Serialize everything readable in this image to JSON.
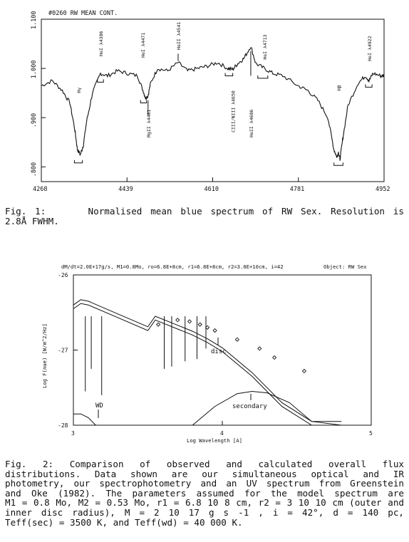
{
  "figure1": {
    "header": "#0260  RW MEAN CONT.",
    "y_tick_labels": [
      "1.100",
      "1.000",
      ".900",
      ".800"
    ],
    "x_tick_labels": [
      "4268",
      "4439",
      "4610",
      "4781",
      "4952"
    ],
    "line_labels": [
      {
        "text": "Hγ"
      },
      {
        "text": "HeI λ4386"
      },
      {
        "text": "HeI λ4471"
      },
      {
        "text": "MgII λ4481"
      },
      {
        "text": "HeII λ4541"
      },
      {
        "text": "CIII/NIII λ4650"
      },
      {
        "text": "HeII λ4686"
      },
      {
        "text": "HeI λ4713"
      },
      {
        "text": "Hβ"
      },
      {
        "text": "HeI λ4922"
      }
    ],
    "caption": {
      "label": "Fig. 1:",
      "line1": "Normalised mean blue spectrum of RW Sex. Resolution is",
      "line2": "2.8Å FWHM."
    },
    "chart_data": {
      "type": "line",
      "title": "#0260  RW MEAN CONT.",
      "xlabel": "",
      "ylabel": "",
      "xlim": [
        4268,
        4952
      ],
      "ylim": [
        0.77,
        1.1
      ],
      "x": [
        4268,
        4290,
        4310,
        4325,
        4335,
        4340,
        4346,
        4352,
        4358,
        4370,
        4386,
        4400,
        4420,
        4440,
        4460,
        4471,
        4476,
        4481,
        4486,
        4500,
        4520,
        4541,
        4560,
        4580,
        4600,
        4620,
        4640,
        4650,
        4660,
        4672,
        4686,
        4696,
        4713,
        4730,
        4750,
        4780,
        4800,
        4820,
        4840,
        4852,
        4858,
        4861,
        4864,
        4870,
        4880,
        4900,
        4915,
        4922,
        4930,
        4945,
        4952
      ],
      "series": [
        {
          "values": [
            0.965,
            0.975,
            0.955,
            0.93,
            0.875,
            0.835,
            0.825,
            0.845,
            0.89,
            0.95,
            0.99,
            0.985,
            0.995,
            0.99,
            0.985,
            0.955,
            0.94,
            0.945,
            0.97,
            1.0,
            0.995,
            1.012,
            0.995,
            1.0,
            1.005,
            1.012,
            1.0,
            0.998,
            1.01,
            1.02,
            1.045,
            1.01,
            1.0,
            0.99,
            0.985,
            0.965,
            0.955,
            0.935,
            0.9,
            0.835,
            0.82,
            0.83,
            0.815,
            0.86,
            0.925,
            0.97,
            0.985,
            0.975,
            0.99,
            0.985,
            0.985
          ]
        }
      ]
    }
  },
  "figure2": {
    "header": "dM/dt=2.0E+17g/s, M1=0.8Mo, ro=6.8E+8cm, r1=6.8E+8cm, r2=3.0E+10cm, i=42",
    "object": "Object: RW Sex",
    "y_tick_labels": [
      "-26",
      "-27",
      "-28"
    ],
    "x_tick_labels": [
      "3",
      "4",
      "5"
    ],
    "ylabel": "Log F(nue) [W/m^2/Hz]",
    "xlabel": "Log Wavelength [A]",
    "annotations": {
      "disc": "disc",
      "secondary": "secondary",
      "wd": "WD"
    },
    "caption": {
      "line1": "Fig. 2:     Comparison  of  observed  and  calculated  overall  flux",
      "line2": "distributions.  Data  shown  are  our  simultaneous  optical  and  IR",
      "line3": "photometry, our spectrophotometry and an UV spectrum from Greenstein",
      "line4": "and  Oke  (1982).  The  parameters  assumed  for  the  model  spectrum  are",
      "line5": "M1 = 0.8 Mo,  M2 = 0.53 Mo,  r1 = 6.8 10 8 cm,  r2 = 3 10 10 cm  (outer  and",
      "line6": "inner   disc   radius),      M = 2 10 17 g s -1 ,    i = 42°,     d = 140 pc,",
      "line7": "Teff(sec) = 3500 K, and Teff(wd) = 40 000 K."
    },
    "chart_data": {
      "type": "line",
      "title": "",
      "xlabel": "Log Wavelength [A]",
      "ylabel": "Log F(nue) [W/m^2/Hz]",
      "xlim": [
        3,
        5
      ],
      "ylim": [
        -28,
        -26
      ],
      "series": [
        {
          "name": "disc",
          "x": [
            3.0,
            3.05,
            3.1,
            3.3,
            3.5,
            3.55,
            3.7,
            3.8,
            3.9,
            4.0,
            4.2,
            4.4,
            4.6,
            4.8
          ],
          "values": [
            -26.45,
            -26.38,
            -26.4,
            -26.57,
            -26.74,
            -26.6,
            -26.72,
            -26.8,
            -26.9,
            -27.02,
            -27.35,
            -27.75,
            -28.0,
            -28.0
          ]
        },
        {
          "name": "secondary",
          "x": [
            3.8,
            3.95,
            4.1,
            4.2,
            4.3,
            4.45,
            4.6,
            4.8
          ],
          "values": [
            -28.0,
            -27.75,
            -27.58,
            -27.55,
            -27.57,
            -27.7,
            -27.95,
            -28.0
          ]
        },
        {
          "name": "WD",
          "x": [
            3.0,
            3.05,
            3.1,
            3.15
          ],
          "values": [
            -27.85,
            -27.85,
            -27.9,
            -28.0
          ]
        },
        {
          "name": "observed",
          "x": [
            3.57,
            3.7,
            3.78,
            3.85,
            3.9,
            3.95,
            4.1,
            4.25,
            4.35,
            4.55
          ],
          "values": [
            -26.66,
            -26.6,
            -26.62,
            -26.66,
            -26.7,
            -26.74,
            -26.86,
            -26.98,
            -27.1,
            -27.28
          ]
        }
      ]
    }
  }
}
